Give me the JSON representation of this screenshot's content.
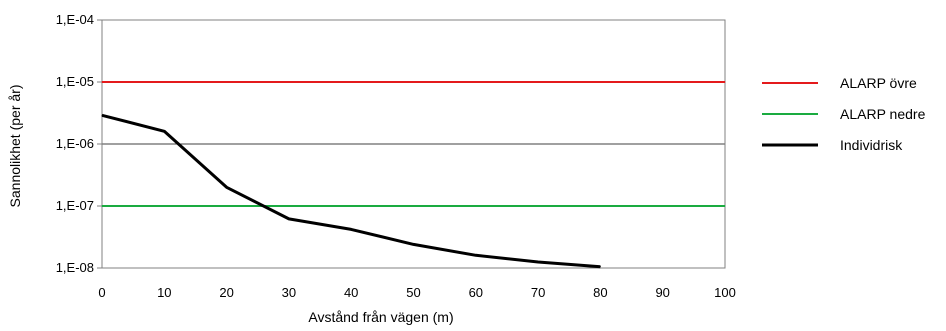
{
  "chart_data": {
    "type": "line",
    "xlabel": "Avstånd från vägen (m)",
    "ylabel": "Sannolikhet (per år)",
    "xlim": [
      0,
      100
    ],
    "ylim": [
      1e-08,
      0.0001
    ],
    "y_scale": "log",
    "x_ticks": [
      "0",
      "10",
      "20",
      "30",
      "40",
      "50",
      "60",
      "70",
      "80",
      "90",
      "100"
    ],
    "y_ticks": [
      "1,E-04",
      "1,E-05",
      "1,E-06",
      "1,E-07",
      "1,E-08"
    ],
    "grid": "horizontal",
    "legend_position": "right",
    "series": [
      {
        "name": "ALARP övre",
        "color": "#e41a1c",
        "x": [
          0,
          100
        ],
        "values": [
          1e-05,
          1e-05
        ]
      },
      {
        "name": "ALARP nedre",
        "color": "#1aab40",
        "x": [
          0,
          100
        ],
        "values": [
          1e-07,
          1e-07
        ]
      },
      {
        "name": "Individrisk",
        "color": "#000000",
        "x": [
          0,
          10,
          20,
          30,
          40,
          50,
          60,
          70,
          80
        ],
        "values": [
          2.9e-06,
          1.6e-06,
          2e-07,
          6.2e-08,
          4.2e-08,
          2.4e-08,
          1.6e-08,
          1.25e-08,
          1.05e-08
        ]
      }
    ]
  }
}
